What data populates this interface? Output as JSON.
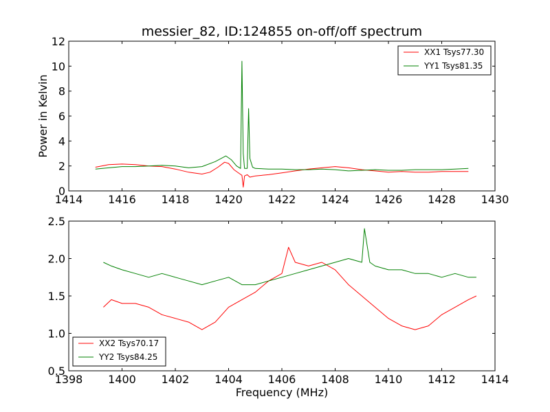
{
  "chart_data": [
    {
      "type": "line",
      "title": "messier_82, ID:124855 on-off/off spectrum",
      "xlabel": "",
      "ylabel": "Power in Kelvin",
      "xlim": [
        1414,
        1430
      ],
      "ylim": [
        0,
        12
      ],
      "xticks": [
        "1414",
        "1416",
        "1418",
        "1420",
        "1422",
        "1424",
        "1426",
        "1428",
        "1430"
      ],
      "yticks": [
        "0",
        "2",
        "4",
        "6",
        "8",
        "10",
        "12"
      ],
      "legend_position": "top-right",
      "series": [
        {
          "name": "XX1 Tsys77.30",
          "color": "#ff0000",
          "x": [
            1415.0,
            1415.5,
            1416.0,
            1416.5,
            1417.0,
            1417.5,
            1418.0,
            1418.5,
            1419.0,
            1419.3,
            1419.6,
            1419.85,
            1420.0,
            1420.2,
            1420.4,
            1420.5,
            1420.55,
            1420.6,
            1420.7,
            1420.8,
            1421.0,
            1421.5,
            1422.0,
            1422.5,
            1423.0,
            1423.5,
            1424.0,
            1424.5,
            1425.0,
            1425.5,
            1426.0,
            1426.5,
            1427.0,
            1427.5,
            1428.0,
            1428.5,
            1429.0
          ],
          "values": [
            1.9,
            2.1,
            2.15,
            2.1,
            2.0,
            1.95,
            1.75,
            1.5,
            1.35,
            1.5,
            1.9,
            2.3,
            2.2,
            1.7,
            1.4,
            1.25,
            0.3,
            1.2,
            1.3,
            1.1,
            1.2,
            1.3,
            1.45,
            1.6,
            1.75,
            1.85,
            1.95,
            1.85,
            1.7,
            1.6,
            1.5,
            1.55,
            1.5,
            1.5,
            1.55,
            1.55,
            1.55
          ]
        },
        {
          "name": "YY1 Tsys81.35",
          "color": "#008000",
          "x": [
            1415.0,
            1415.5,
            1416.0,
            1416.5,
            1417.0,
            1417.5,
            1418.0,
            1418.5,
            1419.0,
            1419.5,
            1419.9,
            1420.1,
            1420.3,
            1420.45,
            1420.5,
            1420.55,
            1420.6,
            1420.7,
            1420.75,
            1420.8,
            1420.9,
            1421.0,
            1421.5,
            1422.0,
            1422.5,
            1423.0,
            1423.5,
            1424.0,
            1424.5,
            1425.0,
            1425.5,
            1426.0,
            1426.5,
            1427.0,
            1427.5,
            1428.0,
            1428.5,
            1429.0
          ],
          "values": [
            1.75,
            1.85,
            1.95,
            1.95,
            2.0,
            2.05,
            2.0,
            1.85,
            1.95,
            2.35,
            2.8,
            2.5,
            2.0,
            1.8,
            10.4,
            3.0,
            1.8,
            1.8,
            6.6,
            2.6,
            1.9,
            1.8,
            1.75,
            1.75,
            1.7,
            1.7,
            1.75,
            1.7,
            1.6,
            1.65,
            1.7,
            1.65,
            1.65,
            1.7,
            1.7,
            1.7,
            1.75,
            1.8
          ]
        }
      ]
    },
    {
      "type": "line",
      "title": "",
      "xlabel": "Frequency (MHz)",
      "ylabel": "",
      "xlim": [
        1398,
        1414
      ],
      "ylim": [
        0.5,
        2.5
      ],
      "xticks": [
        "1398",
        "1400",
        "1402",
        "1404",
        "1406",
        "1408",
        "1410",
        "1412",
        "1414"
      ],
      "yticks": [
        "0.5",
        "1.0",
        "1.5",
        "2.0",
        "2.5"
      ],
      "legend_position": "bottom-left",
      "series": [
        {
          "name": "XX2 Tsys70.17",
          "color": "#ff0000",
          "x": [
            1399.3,
            1399.6,
            1400.0,
            1400.5,
            1401.0,
            1401.5,
            1402.0,
            1402.5,
            1403.0,
            1403.5,
            1404.0,
            1404.5,
            1405.0,
            1405.5,
            1406.0,
            1406.25,
            1406.5,
            1407.0,
            1407.5,
            1408.0,
            1408.5,
            1409.0,
            1409.5,
            1410.0,
            1410.5,
            1411.0,
            1411.5,
            1412.0,
            1412.5,
            1413.0,
            1413.3
          ],
          "values": [
            1.35,
            1.45,
            1.4,
            1.4,
            1.35,
            1.25,
            1.2,
            1.15,
            1.05,
            1.15,
            1.35,
            1.45,
            1.55,
            1.7,
            1.8,
            2.15,
            1.95,
            1.9,
            1.95,
            1.85,
            1.65,
            1.5,
            1.35,
            1.2,
            1.1,
            1.05,
            1.1,
            1.25,
            1.35,
            1.45,
            1.5
          ]
        },
        {
          "name": "YY2 Tsys84.25",
          "color": "#008000",
          "x": [
            1399.3,
            1399.6,
            1400.0,
            1400.5,
            1401.0,
            1401.5,
            1402.0,
            1402.5,
            1403.0,
            1403.5,
            1404.0,
            1404.5,
            1405.0,
            1405.5,
            1406.0,
            1406.5,
            1407.0,
            1407.5,
            1408.0,
            1408.5,
            1409.0,
            1409.1,
            1409.3,
            1409.5,
            1410.0,
            1410.5,
            1411.0,
            1411.5,
            1412.0,
            1412.5,
            1413.0,
            1413.3
          ],
          "values": [
            1.95,
            1.9,
            1.85,
            1.8,
            1.75,
            1.8,
            1.75,
            1.7,
            1.65,
            1.7,
            1.75,
            1.65,
            1.65,
            1.7,
            1.75,
            1.8,
            1.85,
            1.9,
            1.95,
            2.0,
            1.95,
            2.4,
            1.95,
            1.9,
            1.85,
            1.85,
            1.8,
            1.8,
            1.75,
            1.8,
            1.75,
            1.75
          ]
        }
      ]
    }
  ]
}
